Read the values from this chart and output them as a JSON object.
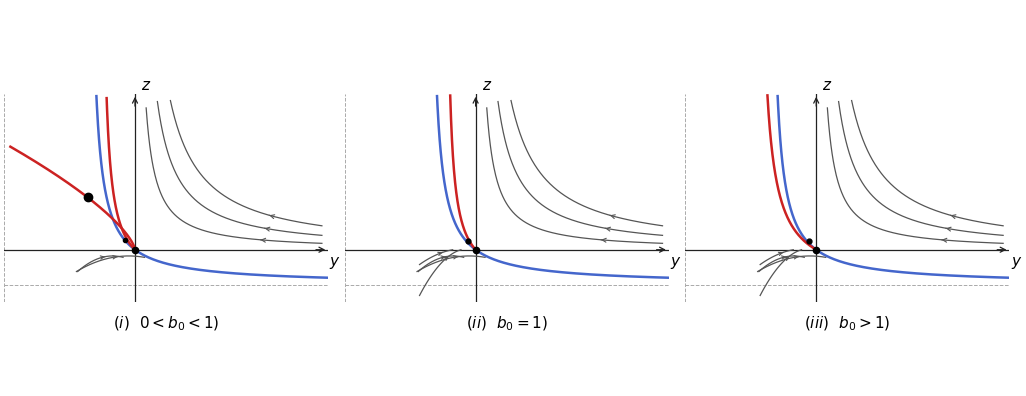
{
  "panels": [
    {
      "b0": 0.5,
      "has_upper_dot": true,
      "upper_dot_data": [
        -0.38,
        0.42
      ]
    },
    {
      "b0": 1.0,
      "has_upper_dot": false,
      "upper_dot_data": null
    },
    {
      "b0": 1.5,
      "has_upper_dot": false,
      "upper_dot_data": null
    }
  ],
  "xlim": [
    -1.05,
    1.55
  ],
  "ylim": [
    -0.42,
    1.25
  ],
  "blue_color": "#4466cc",
  "red_color": "#cc2222",
  "gray_color": "#555555",
  "bg_color": "#ffffff",
  "labels": [
    "(i)\\;0 < b_0 < 1",
    "(ii)\\;b_0 = 1",
    "(iii)\\;b_0 > 1"
  ]
}
